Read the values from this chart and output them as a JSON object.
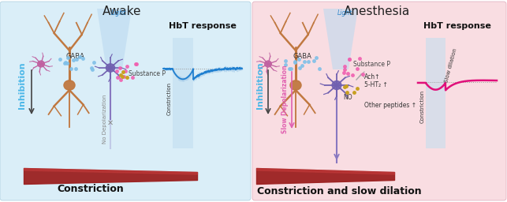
{
  "left_bg_color": "#daeef8",
  "right_bg_color": "#f9dde2",
  "title_left": "Awake",
  "title_right": "Anesthesia",
  "bottom_left": "Constriction",
  "bottom_right": "Constriction and slow dilation",
  "hbt_title": "HbT response",
  "inhibition_color": "#4db8e8",
  "inhibition_text": "Inhibition",
  "slow_dep_color": "#e060b0",
  "slow_dep_text": "Slow Depolarization",
  "no_dep_color": "#888888",
  "no_dep_text": "No Depolarization",
  "constriction_text": "Constriction",
  "slow_dilation_text": "Slow dilation",
  "gaba_text": "GABA",
  "substance_p_text": "Substance P",
  "light_text": "Light",
  "ach_text": "Ach↑",
  "serotonin_text": "5-HT₂ ↑",
  "no_text": "NO",
  "other_peptides_text": "Other peptides ↑",
  "pyramidal_color": "#c07840",
  "pv_neuron_color_pink": "#c060a0",
  "pv_neuron_color_purple": "#7060b0",
  "vessel_color": "#9b2020",
  "light_beam_color": "#b8d8f0",
  "dot_color_pink": "#f060b0",
  "dot_color_blue": "#80c0e8",
  "dot_color_gold": "#c8a020",
  "left_graph_line_color": "#2080d0",
  "left_graph_shade_color": "#a0c8e8",
  "right_graph_line_color": "#e0107a",
  "stim_bar_color": "#c0ddf0",
  "baseline_color": "#999999",
  "axon_color": "#8878c0"
}
